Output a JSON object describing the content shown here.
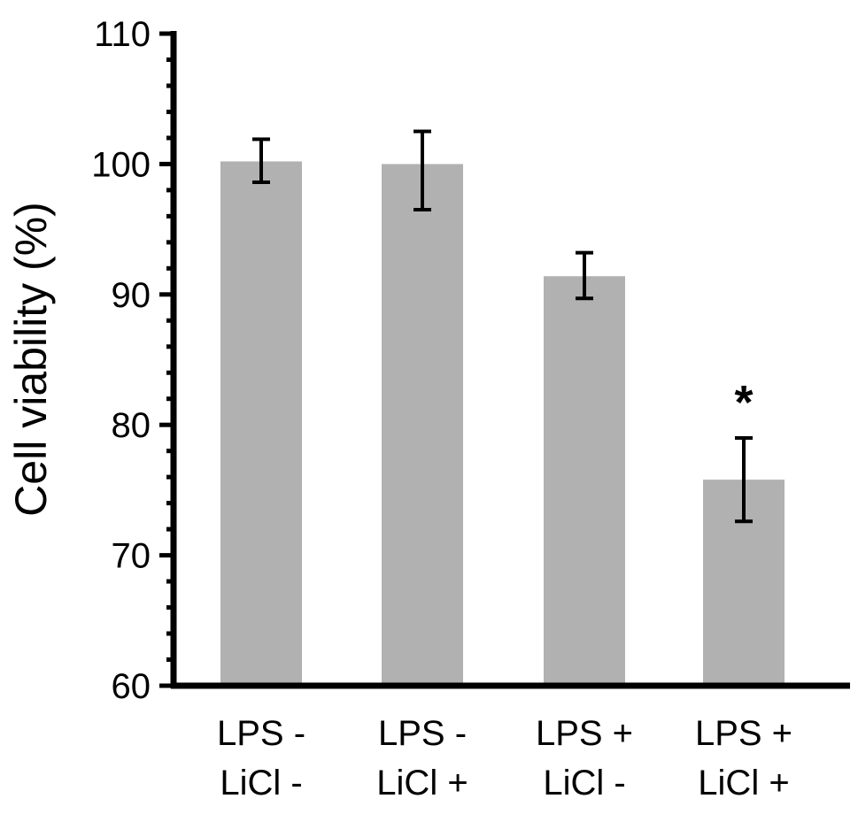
{
  "chart_data": {
    "type": "bar",
    "title": "",
    "xlabel": "",
    "ylabel": "Cell viability (%)",
    "ylim": [
      60,
      110
    ],
    "yticks": [
      60,
      70,
      80,
      90,
      100,
      110
    ],
    "y_minor_step": 2,
    "grid": false,
    "categories": [
      {
        "line1": "LPS -",
        "line2": "LiCl -"
      },
      {
        "line1": "LPS -",
        "line2": "LiCl +"
      },
      {
        "line1": "LPS +",
        "line2": "LiCl -"
      },
      {
        "line1": "LPS +",
        "line2": "LiCl +"
      }
    ],
    "values": [
      100.2,
      100.0,
      91.4,
      75.8
    ],
    "error_low": [
      98.6,
      96.5,
      89.7,
      72.6
    ],
    "error_high": [
      101.9,
      102.5,
      93.2,
      79.0
    ],
    "annotations": [
      "",
      "",
      "",
      "*"
    ],
    "bar_color": "#b1b1b1",
    "axis_color": "#000000"
  }
}
